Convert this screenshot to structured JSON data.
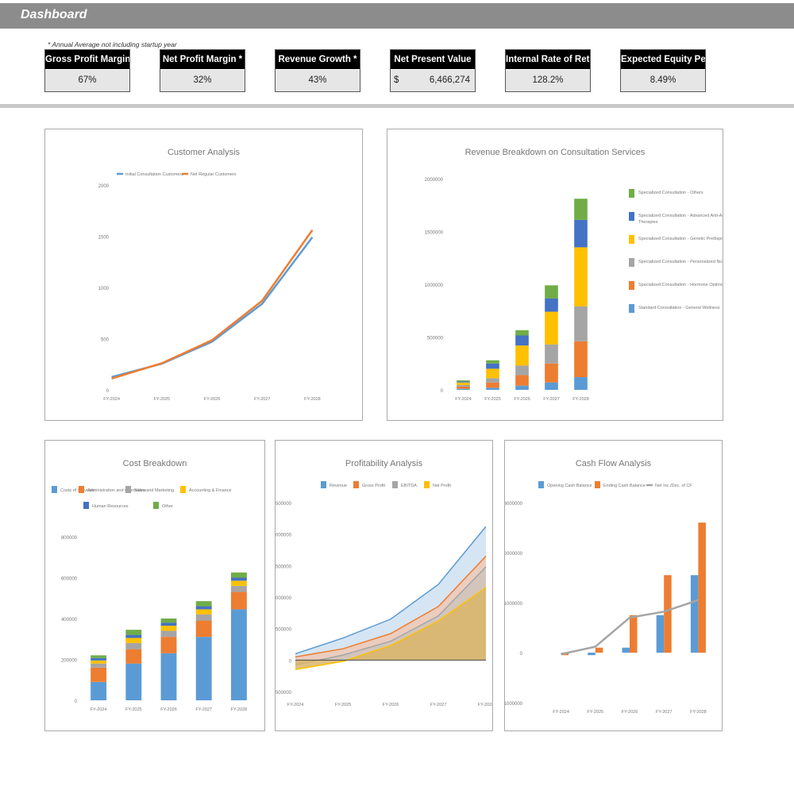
{
  "header": {
    "title": "Dashboard",
    "note": "* Annual Average not including startup year"
  },
  "kpis": [
    {
      "label": "Gross Profit Margin *",
      "value": "67%"
    },
    {
      "label": "Net Profit Margin *",
      "value": "32%"
    },
    {
      "label": "Revenue Growth *",
      "value": "43%"
    },
    {
      "label": "Net Present Value",
      "currency": "$",
      "value": "6,466,274"
    },
    {
      "label": "Internal Rate of Return",
      "value": "128.2%"
    },
    {
      "label": "Expected Equity Percentage",
      "value": "8.49%"
    }
  ],
  "chart_data": [
    {
      "id": "customer",
      "type": "line",
      "title": "Customer Analysis",
      "categories": [
        "FY-2024",
        "FY-2025",
        "FY-2026",
        "FY-2027",
        "FY-2028"
      ],
      "ylim": [
        0,
        2000
      ],
      "yticks": [
        0,
        500,
        1000,
        1500,
        2000
      ],
      "legend": "top",
      "series": [
        {
          "name": "Initial Consultation Customers",
          "color": "#5b9bd5",
          "values": [
            125,
            255,
            470,
            840,
            1490
          ]
        },
        {
          "name": "Net Regular Customers",
          "color": "#ed7d31",
          "values": [
            110,
            260,
            485,
            870,
            1560
          ]
        }
      ]
    },
    {
      "id": "revenue",
      "type": "bar",
      "stacked": true,
      "title": "Revenue Breakdown on Consultation Services",
      "categories": [
        "FY-2024",
        "FY-2025",
        "FY-2026",
        "FY-2027",
        "FY-2028"
      ],
      "ylim": [
        0,
        2000000
      ],
      "yticks": [
        0,
        500000,
        1000000,
        1500000,
        2000000
      ],
      "legend": "right",
      "series": [
        {
          "name": "Standard Consultation - General Wellness",
          "color": "#5b9bd5",
          "values": [
            10000,
            20000,
            40000,
            70000,
            120000
          ]
        },
        {
          "name": "Specialized Consultation - Hormone Optimization",
          "color": "#ed7d31",
          "values": [
            20000,
            50000,
            100000,
            180000,
            340000
          ]
        },
        {
          "name": "Specialized Consultation - Personalized Nutrition",
          "color": "#a5a5a5",
          "values": [
            15000,
            40000,
            90000,
            180000,
            330000
          ]
        },
        {
          "name": "Specialized Consultation - Genetic Predispositions",
          "color": "#ffc000",
          "values": [
            25000,
            90000,
            190000,
            310000,
            560000
          ]
        },
        {
          "name": "Specialized Consultation - Advanced Anti-Aging Therapies",
          "color": "#4472c4",
          "values": [
            10000,
            50000,
            95000,
            125000,
            260000
          ]
        },
        {
          "name": "Specialized Consultation - Others",
          "color": "#70ad47",
          "values": [
            10000,
            30000,
            50000,
            125000,
            200000
          ]
        }
      ]
    },
    {
      "id": "cost",
      "type": "bar",
      "stacked": true,
      "title": "Cost Breakdown",
      "categories": [
        "FY-2024",
        "FY-2025",
        "FY-2026",
        "FY-2027",
        "FY-2028"
      ],
      "ylim": [
        0,
        800000
      ],
      "yticks": [
        0,
        200000,
        400000,
        600000,
        800000
      ],
      "legend": "top",
      "series": [
        {
          "name": "Costs of Services",
          "color": "#5b9bd5",
          "values": [
            90000,
            180000,
            230000,
            310000,
            445000
          ]
        },
        {
          "name": "Administration and Operations",
          "color": "#ed7d31",
          "values": [
            70000,
            70000,
            80000,
            80000,
            85000
          ]
        },
        {
          "name": "Sales and Marketing",
          "color": "#a5a5a5",
          "values": [
            20000,
            30000,
            30000,
            30000,
            30000
          ]
        },
        {
          "name": "Accounting & Finance",
          "color": "#ffc000",
          "values": [
            15000,
            25000,
            25000,
            25000,
            25000
          ]
        },
        {
          "name": "Human Resources",
          "color": "#4472c4",
          "values": [
            12000,
            15000,
            15000,
            15000,
            15000
          ]
        },
        {
          "name": "Other",
          "color": "#70ad47",
          "values": [
            13000,
            25000,
            20000,
            25000,
            25000
          ]
        }
      ]
    },
    {
      "id": "profit",
      "type": "area",
      "title": "Profitability Analysis",
      "categories": [
        "FY-2024",
        "FY-2025",
        "FY-2026",
        "FY-2027",
        "FY-2028"
      ],
      "ylim": [
        -500000,
        2500000
      ],
      "yticks": [
        -500000,
        0,
        500000,
        1000000,
        1500000,
        2000000,
        2500000
      ],
      "legend": "top",
      "series": [
        {
          "name": "Revenue",
          "color": "#5b9bd5",
          "fill": "#cfe0f2",
          "values": [
            100000,
            350000,
            650000,
            1200000,
            2120000
          ]
        },
        {
          "name": "Gross Profit",
          "color": "#ed7d31",
          "fill": "#efc9b5",
          "values": [
            50000,
            180000,
            420000,
            850000,
            1650000
          ]
        },
        {
          "name": "EBITDA",
          "color": "#a5a5a5",
          "fill": "#cfc3ba",
          "values": [
            -80000,
            80000,
            300000,
            700000,
            1480000
          ]
        },
        {
          "name": "Net Profit",
          "color": "#ffc000",
          "fill": "#d9b56a",
          "values": [
            -150000,
            -20000,
            230000,
            620000,
            1150000
          ]
        }
      ]
    },
    {
      "id": "cash",
      "type": "bar",
      "title": "Cash Flow Analysis",
      "categories": [
        "FY-2024",
        "FY-2025",
        "FY-2026",
        "FY-2027",
        "FY-2028"
      ],
      "ylim": [
        -1000000,
        3000000
      ],
      "yticks": [
        -1000000,
        0,
        1000000,
        2000000,
        3000000
      ],
      "legend": "top",
      "series": [
        {
          "name": "Opening Cash Balance",
          "color": "#5b9bd5",
          "kind": "bar",
          "values": [
            0,
            -50000,
            100000,
            750000,
            1550000
          ]
        },
        {
          "name": "Ending Cash Balance",
          "color": "#ed7d31",
          "kind": "bar",
          "values": [
            -50000,
            100000,
            750000,
            1550000,
            2600000
          ]
        },
        {
          "name": "Net Inc./Dec. of CF",
          "color": "#a5a5a5",
          "kind": "line",
          "values": [
            -30000,
            120000,
            700000,
            820000,
            1050000
          ]
        }
      ]
    }
  ]
}
